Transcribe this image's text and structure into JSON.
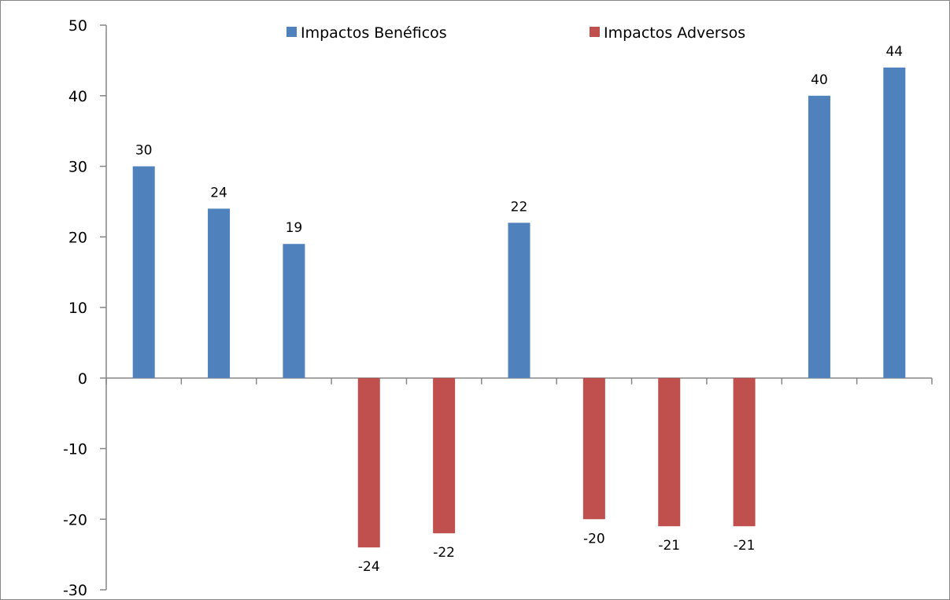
{
  "chart_data": {
    "type": "bar",
    "categories": [
      "",
      "",
      "",
      "",
      "",
      "",
      "",
      "",
      "",
      "",
      ""
    ],
    "series": [
      {
        "name": "Impactos Benéficos",
        "color": "#4F81BD",
        "values": [
          30,
          24,
          19,
          null,
          null,
          22,
          null,
          null,
          null,
          40,
          44
        ]
      },
      {
        "name": "Impactos Adversos",
        "color": "#C0504D",
        "values": [
          null,
          null,
          null,
          -24,
          -22,
          null,
          -20,
          -21,
          -21,
          null,
          null
        ]
      }
    ],
    "ylim": [
      -30,
      50
    ],
    "yticks": [
      -30,
      -20,
      -10,
      0,
      10,
      20,
      30,
      40,
      50
    ],
    "data_labels": true,
    "grid": false,
    "legend_position": "top",
    "xlabel": "",
    "ylabel": "",
    "title": ""
  }
}
